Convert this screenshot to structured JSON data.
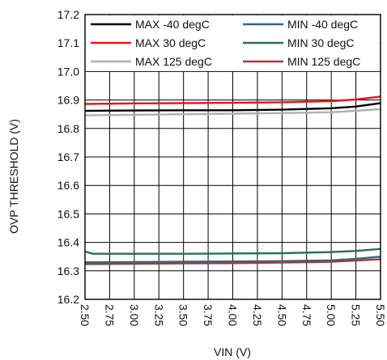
{
  "chart_data": {
    "type": "line",
    "title": "",
    "xlabel": "VIN (V)",
    "ylabel": "OVP THRESHOLD (V)",
    "xlim": [
      2.5,
      5.5
    ],
    "ylim": [
      16.2,
      17.2
    ],
    "grid": true,
    "legend_position": "top (inside plot, two columns)",
    "x_tick_labels": [
      "2.50",
      "2.75",
      "3.00",
      "3.25",
      "3.50",
      "3.75",
      "4.00",
      "4.25",
      "4.50",
      "4.75",
      "5.00",
      "5.25",
      "5.50"
    ],
    "y_tick_labels": [
      "16.2",
      "16.3",
      "16.4",
      "16.5",
      "16.6",
      "16.7",
      "16.8",
      "16.9",
      "17.0",
      "17.1",
      "17.2"
    ],
    "series": [
      {
        "name": "MAX -40 degC",
        "color": "#000000",
        "x": [
          2.5,
          3.0,
          3.5,
          4.0,
          4.5,
          5.0,
          5.25,
          5.5
        ],
        "y": [
          16.862,
          16.863,
          16.864,
          16.864,
          16.866,
          16.871,
          16.877,
          16.889
        ]
      },
      {
        "name": "MAX 30 degC",
        "color": "#e8141c",
        "x": [
          2.5,
          3.0,
          3.5,
          4.0,
          4.5,
          5.0,
          5.25,
          5.5
        ],
        "y": [
          16.886,
          16.888,
          16.889,
          16.89,
          16.892,
          16.896,
          16.902,
          16.912
        ]
      },
      {
        "name": "MAX 125 degC",
        "color": "#b0b0b0",
        "x": [
          2.5,
          3.0,
          3.5,
          4.0,
          4.5,
          5.0,
          5.25,
          5.5
        ],
        "y": [
          16.846,
          16.848,
          16.85,
          16.852,
          16.854,
          16.857,
          16.862,
          16.868
        ]
      },
      {
        "name": "MIN -40 degC",
        "color": "#2f6b7a",
        "x": [
          2.5,
          3.0,
          3.5,
          4.0,
          4.5,
          5.0,
          5.25,
          5.5
        ],
        "y": [
          16.33,
          16.331,
          16.332,
          16.333,
          16.334,
          16.337,
          16.342,
          16.35
        ]
      },
      {
        "name": "MIN 30 degC",
        "color": "#2e6e4e",
        "x": [
          2.5,
          2.58,
          3.0,
          3.5,
          4.0,
          4.5,
          5.0,
          5.25,
          5.5
        ],
        "y": [
          16.368,
          16.36,
          16.36,
          16.36,
          16.361,
          16.362,
          16.366,
          16.37,
          16.377
        ]
      },
      {
        "name": "MIN 125 degC",
        "color": "#a13a40",
        "x": [
          2.5,
          3.0,
          3.5,
          4.0,
          4.5,
          5.0,
          5.25,
          5.5
        ],
        "y": [
          16.324,
          16.325,
          16.326,
          16.327,
          16.329,
          16.332,
          16.336,
          16.341
        ]
      }
    ]
  }
}
